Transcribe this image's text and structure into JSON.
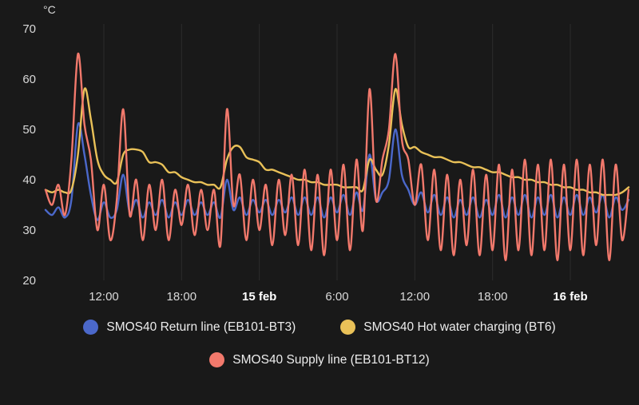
{
  "chart_data": {
    "type": "line",
    "title": "",
    "ylabel": "°C",
    "xlabel": "",
    "ylim": [
      20,
      70
    ],
    "xlim_hours": [
      7.5,
      52.5
    ],
    "x_unit": "hours since 14 feb 00:00",
    "grid": "vertical",
    "legend_position": "bottom",
    "background": "#191919",
    "grid_color": "rgba(255,255,255,0.08)",
    "yticks": [
      20,
      30,
      40,
      50,
      60,
      70
    ],
    "xticks": [
      {
        "t": 12,
        "label": "12:00",
        "bold": false
      },
      {
        "t": 18,
        "label": "18:00",
        "bold": false
      },
      {
        "t": 24,
        "label": "15 feb",
        "bold": true
      },
      {
        "t": 30,
        "label": "6:00",
        "bold": false
      },
      {
        "t": 36,
        "label": "12:00",
        "bold": false
      },
      {
        "t": 42,
        "label": "18:00",
        "bold": false
      },
      {
        "t": 48,
        "label": "16 feb",
        "bold": true
      }
    ],
    "x": [
      7.5,
      8,
      8.5,
      9,
      9.5,
      10,
      10.5,
      11,
      11.5,
      12,
      12.5,
      13,
      13.5,
      14,
      14.5,
      15,
      15.5,
      16,
      16.5,
      17,
      17.5,
      18,
      18.5,
      19,
      19.5,
      20,
      20.5,
      21,
      21.5,
      22,
      22.5,
      23,
      23.5,
      24,
      24.5,
      25,
      25.5,
      26,
      26.5,
      27,
      27.5,
      28,
      28.5,
      29,
      29.5,
      30,
      30.5,
      31,
      31.5,
      32,
      32.5,
      33,
      33.5,
      34,
      34.5,
      35,
      35.5,
      36,
      36.5,
      37,
      37.5,
      38,
      38.5,
      39,
      39.5,
      40,
      40.5,
      41,
      41.5,
      42,
      42.5,
      43,
      43.5,
      44,
      44.5,
      45,
      45.5,
      46,
      46.5,
      47,
      47.5,
      48,
      48.5,
      49,
      49.5,
      50,
      50.5,
      51,
      51.5,
      52,
      52.5
    ],
    "series": [
      {
        "name": "SMOS40 Return line (EB101-BT3)",
        "color": "#4b68ca",
        "values": [
          34,
          33,
          34.5,
          32.5,
          36,
          51,
          45,
          37,
          32,
          35.5,
          32.5,
          34,
          41,
          33.5,
          36,
          32.5,
          35.5,
          33,
          36,
          32.5,
          35.5,
          33,
          36,
          33,
          35.5,
          33,
          35.5,
          32.5,
          40,
          34,
          36.5,
          33,
          36,
          33.5,
          36,
          33,
          36,
          33.5,
          36.5,
          33,
          36.5,
          33,
          36.5,
          32.5,
          36.5,
          33.5,
          37,
          33,
          37.5,
          34,
          45,
          36,
          37.5,
          40,
          50,
          41,
          38,
          35,
          37.5,
          33.5,
          37,
          33,
          36.5,
          32.5,
          36,
          33,
          36.5,
          32.5,
          36,
          33,
          37,
          32.5,
          36.5,
          33,
          37,
          32.5,
          36.5,
          33,
          37,
          32.5,
          36.5,
          33,
          37,
          33,
          36.5,
          33.5,
          37,
          32.5,
          36.5,
          34,
          36
        ]
      },
      {
        "name": "SMOS40 Hot water charging (BT6)",
        "color": "#e9c158",
        "values": [
          38,
          37.5,
          38,
          37.5,
          38,
          45,
          58,
          52,
          44,
          41,
          40,
          39.5,
          45,
          46,
          46,
          45.5,
          43.5,
          43.5,
          43,
          41.5,
          41.5,
          40.5,
          40,
          39.5,
          39.5,
          39,
          39,
          38.5,
          44,
          46.5,
          46.5,
          44.5,
          44,
          43.5,
          42,
          42,
          41.5,
          41,
          40.5,
          40,
          40,
          39.5,
          39.5,
          39,
          39,
          39,
          38.5,
          38.5,
          38.5,
          38,
          44,
          42,
          41,
          47,
          58,
          51,
          46.5,
          46.5,
          45.5,
          45,
          44.5,
          44.5,
          44,
          43.5,
          43.5,
          43,
          42.5,
          42.5,
          42,
          41.5,
          41.5,
          41,
          40.5,
          40.5,
          40,
          40,
          39.5,
          39.5,
          39,
          39,
          38.5,
          38.5,
          38,
          38,
          37.5,
          37.5,
          37,
          37,
          37,
          37.5,
          38.5
        ]
      },
      {
        "name": "SMOS40 Supply line (EB101-BT12)",
        "color": "#f2796c",
        "values": [
          38,
          35,
          39,
          33,
          44,
          65,
          51,
          44,
          30,
          39,
          28,
          36,
          54,
          33,
          40,
          28,
          39,
          30,
          40,
          28,
          38,
          31,
          39,
          29,
          38,
          30,
          38,
          27,
          54,
          35,
          41,
          28,
          40,
          30,
          39,
          27,
          40,
          29,
          41,
          27,
          42,
          26,
          41,
          25,
          42,
          28,
          43,
          26,
          44,
          30,
          58,
          36,
          44,
          50,
          65,
          48,
          44,
          35,
          43,
          28,
          42,
          26,
          41,
          25,
          40,
          27,
          42,
          25,
          41,
          26,
          43,
          24,
          42,
          26,
          44,
          25,
          43,
          26,
          44,
          24,
          43,
          26,
          44,
          25,
          43,
          27,
          44,
          24,
          43,
          28,
          38
        ]
      }
    ]
  }
}
